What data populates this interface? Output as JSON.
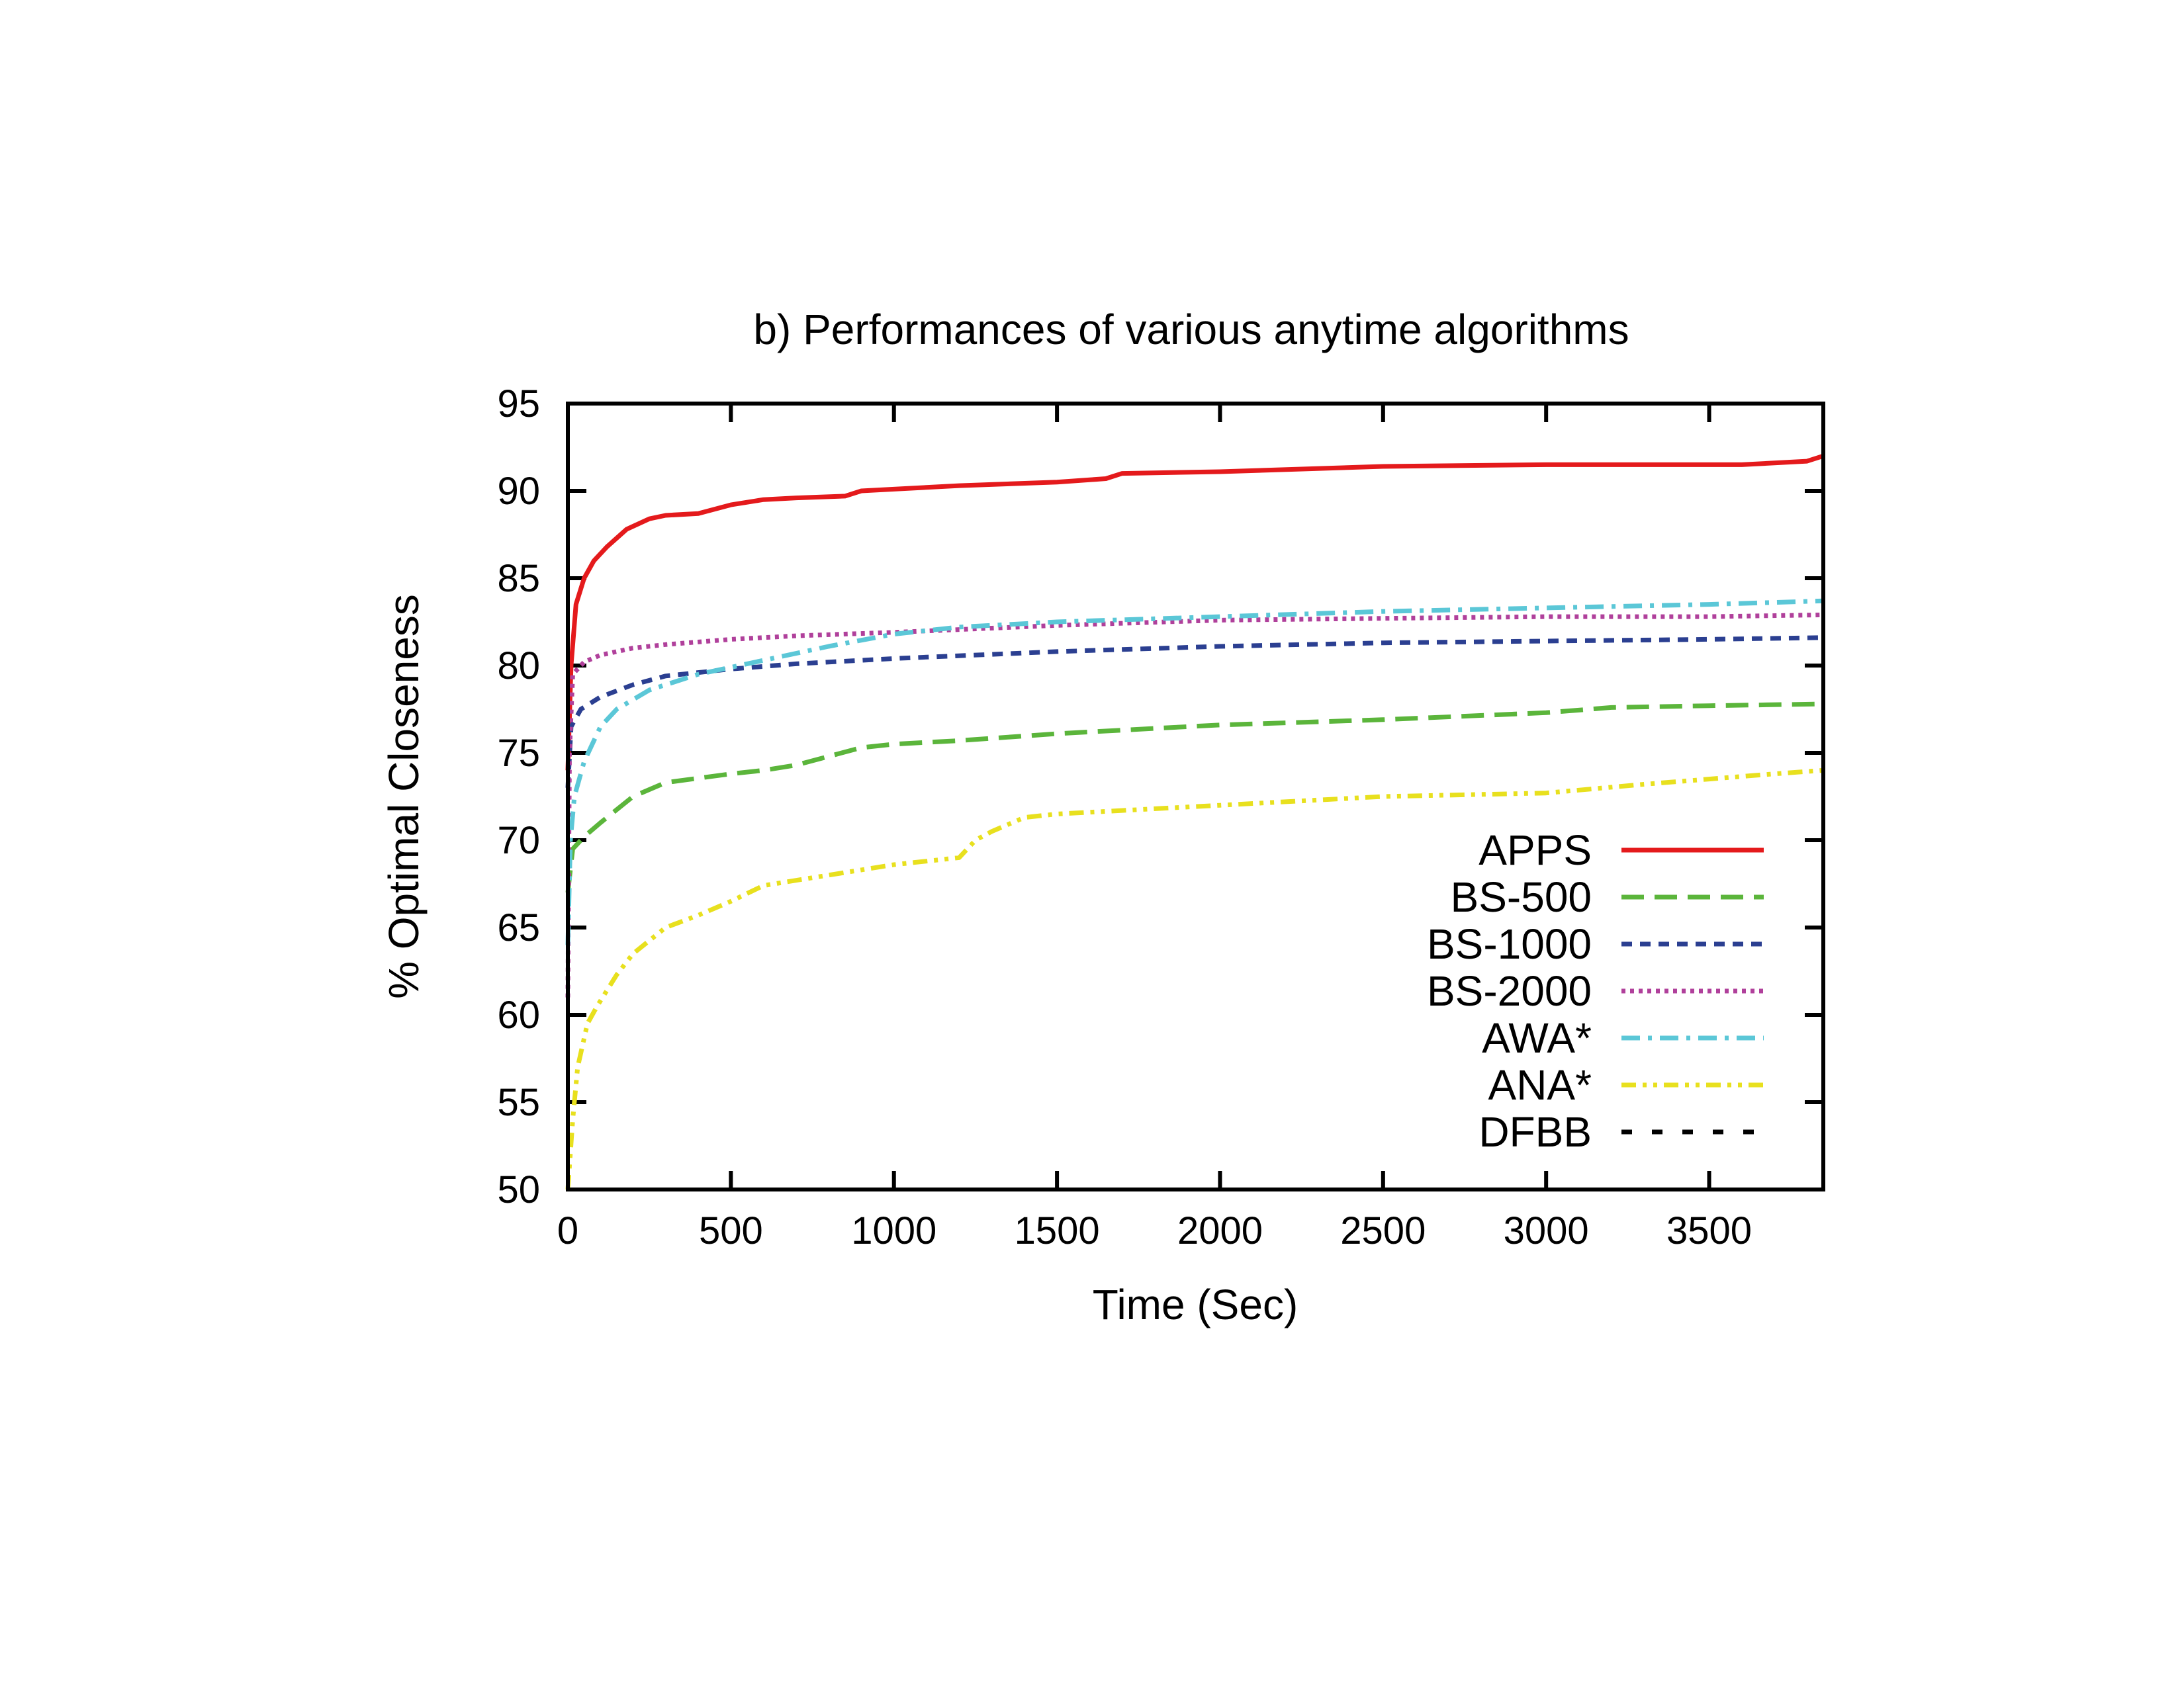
{
  "chart_data": {
    "type": "line",
    "title": "b) Performances of various anytime algorithms",
    "xlabel": "Time (Sec)",
    "ylabel": "% Optimal Closeness",
    "xlim": [
      0,
      3850
    ],
    "ylim": [
      50,
      95
    ],
    "xticks": [
      0,
      500,
      1000,
      1500,
      2000,
      2500,
      3000,
      3500
    ],
    "yticks": [
      50,
      55,
      60,
      65,
      70,
      75,
      80,
      85,
      90,
      95
    ],
    "grid": false,
    "legend_position": "bottom-right (inside plot)",
    "series": [
      {
        "name": "APPS",
        "color": "#e41a1c",
        "dash": "solid",
        "points": [
          [
            0,
            74
          ],
          [
            10,
            80
          ],
          [
            25,
            83.5
          ],
          [
            50,
            85
          ],
          [
            80,
            86
          ],
          [
            120,
            86.8
          ],
          [
            180,
            87.8
          ],
          [
            250,
            88.4
          ],
          [
            300,
            88.6
          ],
          [
            400,
            88.7
          ],
          [
            500,
            89.2
          ],
          [
            600,
            89.5
          ],
          [
            700,
            89.6
          ],
          [
            850,
            89.7
          ],
          [
            900,
            90.0
          ],
          [
            1000,
            90.1
          ],
          [
            1200,
            90.3
          ],
          [
            1500,
            90.5
          ],
          [
            1650,
            90.7
          ],
          [
            1700,
            91.0
          ],
          [
            2000,
            91.1
          ],
          [
            2500,
            91.4
          ],
          [
            3000,
            91.5
          ],
          [
            3600,
            91.5
          ],
          [
            3800,
            91.7
          ],
          [
            3850,
            92.0
          ]
        ]
      },
      {
        "name": "BS-500",
        "color": "#5bb53b",
        "dash": "long-dash",
        "points": [
          [
            0,
            67
          ],
          [
            15,
            69.5
          ],
          [
            50,
            70.2
          ],
          [
            100,
            71
          ],
          [
            200,
            72.5
          ],
          [
            300,
            73.3
          ],
          [
            500,
            73.8
          ],
          [
            600,
            74.0
          ],
          [
            700,
            74.3
          ],
          [
            900,
            75.3
          ],
          [
            1000,
            75.5
          ],
          [
            1200,
            75.7
          ],
          [
            1500,
            76.1
          ],
          [
            1800,
            76.4
          ],
          [
            2000,
            76.6
          ],
          [
            2500,
            76.9
          ],
          [
            3000,
            77.3
          ],
          [
            3200,
            77.6
          ],
          [
            3500,
            77.7
          ],
          [
            3850,
            77.8
          ]
        ]
      },
      {
        "name": "BS-1000",
        "color": "#2b3f91",
        "dash": "short-dash",
        "points": [
          [
            0,
            73
          ],
          [
            10,
            76.5
          ],
          [
            40,
            77.5
          ],
          [
            100,
            78.2
          ],
          [
            200,
            78.9
          ],
          [
            300,
            79.4
          ],
          [
            400,
            79.6
          ],
          [
            500,
            79.8
          ],
          [
            700,
            80.1
          ],
          [
            1000,
            80.4
          ],
          [
            1500,
            80.8
          ],
          [
            2000,
            81.1
          ],
          [
            2500,
            81.3
          ],
          [
            3000,
            81.4
          ],
          [
            3500,
            81.5
          ],
          [
            3850,
            81.6
          ]
        ]
      },
      {
        "name": "BS-2000",
        "color": "#b0409b",
        "dash": "dotted",
        "points": [
          [
            0,
            61
          ],
          [
            5,
            75
          ],
          [
            15,
            79.5
          ],
          [
            50,
            80.2
          ],
          [
            100,
            80.6
          ],
          [
            200,
            81.0
          ],
          [
            300,
            81.2
          ],
          [
            500,
            81.5
          ],
          [
            700,
            81.7
          ],
          [
            1000,
            81.9
          ],
          [
            1500,
            82.3
          ],
          [
            2000,
            82.6
          ],
          [
            2500,
            82.7
          ],
          [
            3000,
            82.8
          ],
          [
            3500,
            82.8
          ],
          [
            3850,
            82.9
          ]
        ]
      },
      {
        "name": "AWA*",
        "color": "#5bc7d7",
        "dash": "dash-dot",
        "points": [
          [
            0,
            64
          ],
          [
            8,
            70
          ],
          [
            20,
            72.5
          ],
          [
            50,
            74.5
          ],
          [
            100,
            76.5
          ],
          [
            150,
            77.5
          ],
          [
            250,
            78.6
          ],
          [
            400,
            79.5
          ],
          [
            600,
            80.3
          ],
          [
            800,
            81.1
          ],
          [
            1000,
            81.8
          ],
          [
            1200,
            82.2
          ],
          [
            1500,
            82.5
          ],
          [
            2000,
            82.8
          ],
          [
            2500,
            83.1
          ],
          [
            3000,
            83.3
          ],
          [
            3500,
            83.5
          ],
          [
            3850,
            83.7
          ]
        ]
      },
      {
        "name": "ANA*",
        "color": "#e8e01e",
        "dash": "dash-dot-dot",
        "points": [
          [
            0,
            50
          ],
          [
            15,
            54
          ],
          [
            30,
            57
          ],
          [
            60,
            59.5
          ],
          [
            90,
            60.5
          ],
          [
            150,
            62.3
          ],
          [
            200,
            63.5
          ],
          [
            300,
            65.0
          ],
          [
            400,
            65.7
          ],
          [
            500,
            66.5
          ],
          [
            600,
            67.4
          ],
          [
            700,
            67.7
          ],
          [
            800,
            68.0
          ],
          [
            900,
            68.3
          ],
          [
            1000,
            68.6
          ],
          [
            1200,
            69.0
          ],
          [
            1250,
            70.0
          ],
          [
            1300,
            70.5
          ],
          [
            1400,
            71.3
          ],
          [
            1500,
            71.5
          ],
          [
            1700,
            71.7
          ],
          [
            2000,
            72.0
          ],
          [
            2500,
            72.5
          ],
          [
            3000,
            72.7
          ],
          [
            3300,
            73.2
          ],
          [
            3500,
            73.5
          ],
          [
            3700,
            73.8
          ],
          [
            3850,
            74.0
          ]
        ]
      },
      {
        "name": "DFBB",
        "color": "#000000",
        "dash": "dash-sparse",
        "points": []
      }
    ]
  }
}
